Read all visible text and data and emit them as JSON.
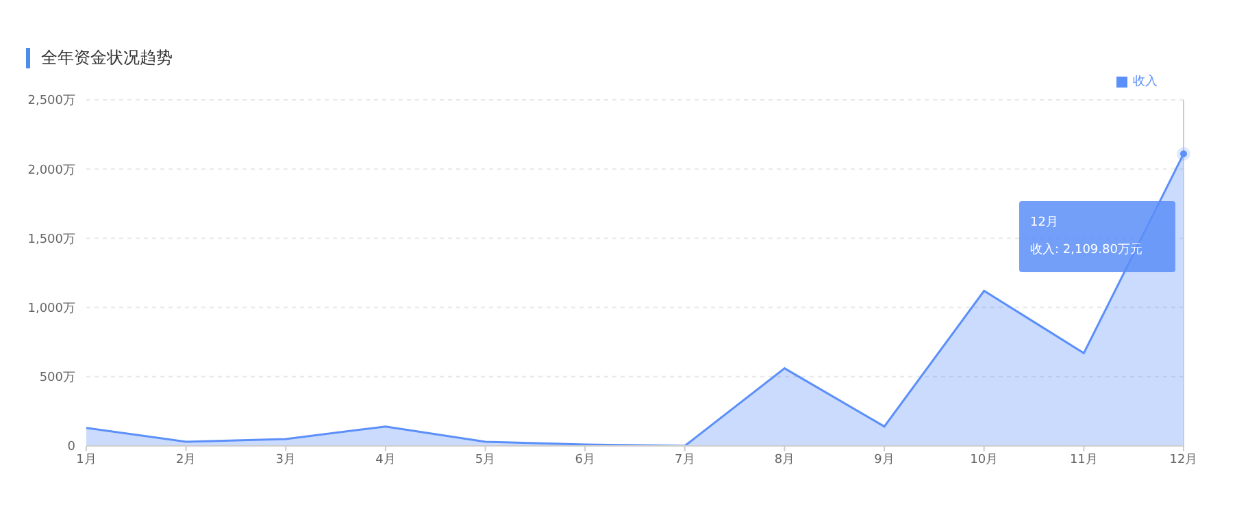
{
  "chart_data": {
    "type": "area",
    "title": "全年资金状况趋势",
    "categories": [
      "1月",
      "2月",
      "3月",
      "4月",
      "5月",
      "6月",
      "7月",
      "8月",
      "9月",
      "10月",
      "11月",
      "12月"
    ],
    "series": [
      {
        "name": "收入",
        "color": "#5b8ff9",
        "values": [
          130,
          30,
          50,
          140,
          30,
          10,
          0,
          560,
          140,
          1120,
          670,
          2109.8
        ]
      }
    ],
    "ylim": [
      0,
      2500
    ],
    "yticks": [
      0,
      {
        "value": 500,
        "label": "500万"
      },
      {
        "value": 1000,
        "label": "1,000万"
      },
      {
        "value": 1500,
        "label": "1,500万"
      },
      {
        "value": 2000,
        "label": "2,000万"
      },
      {
        "value": 2500,
        "label": "2,500万"
      }
    ],
    "grid": "y",
    "legend": "top right",
    "annotations": [
      "12月",
      "收入: 2,109.80万元"
    ]
  }
}
